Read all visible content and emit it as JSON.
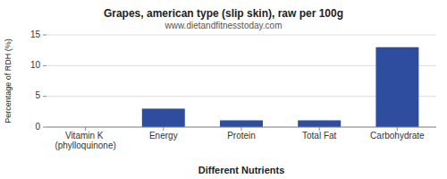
{
  "chart_data": {
    "type": "bar",
    "title": "Grapes, american type (slip skin), raw per 100g",
    "subtitle": "www.dietandfitnesstoday.com",
    "categories": [
      "Vitamin K (phylloquinone)",
      "Energy",
      "Protein",
      "Total Fat",
      "Carbohydrate"
    ],
    "values": [
      0.0,
      3.0,
      1.1,
      1.1,
      13.0
    ],
    "color": "#2e4d9e",
    "xlabel": "Different Nutrients",
    "ylabel": "Percentage of RDH (%)",
    "ylim": [
      0,
      15
    ],
    "yticks": [
      0,
      5,
      10,
      15
    ],
    "grid": true
  }
}
